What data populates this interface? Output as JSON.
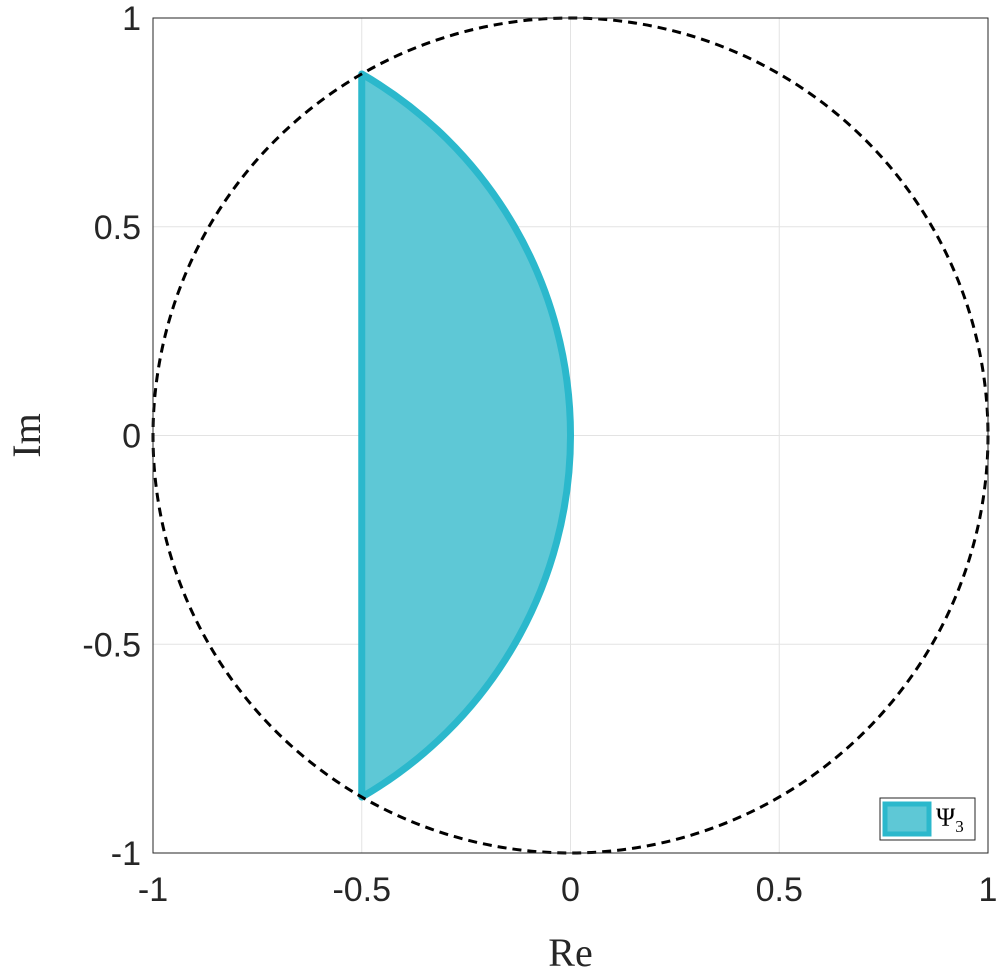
{
  "chart_data": {
    "type": "area",
    "xlabel": "Re",
    "ylabel": "Im",
    "xlim": [
      -1,
      1
    ],
    "ylim": [
      -1,
      1
    ],
    "grid": true,
    "xticks": [
      -1,
      -0.5,
      0,
      0.5,
      1
    ],
    "yticks": [
      -1,
      -0.5,
      0,
      0.5,
      1
    ],
    "xtick_labels": [
      "-1",
      "-0.5",
      "0",
      "0.5",
      "1"
    ],
    "ytick_labels": [
      "-1",
      "-0.5",
      "0",
      "0.5",
      "1"
    ],
    "unit_circle": {
      "center": [
        0,
        0
      ],
      "radius": 1,
      "style": "dashed",
      "color": "#000000"
    },
    "series": [
      {
        "name": "Ψ",
        "name_subscript": "3",
        "shape": "circular segment",
        "arc_center": [
          -1,
          0
        ],
        "arc_radius": 1,
        "vertices": [
          [
            -0.5,
            0.866
          ],
          [
            0,
            0
          ],
          [
            -0.5,
            -0.866
          ]
        ],
        "x_range": [
          -0.5,
          0
        ],
        "fill_color": "#5ec8d6",
        "edge_color": "#2bb8cc"
      }
    ],
    "legend": {
      "position": "bottom-right"
    }
  }
}
